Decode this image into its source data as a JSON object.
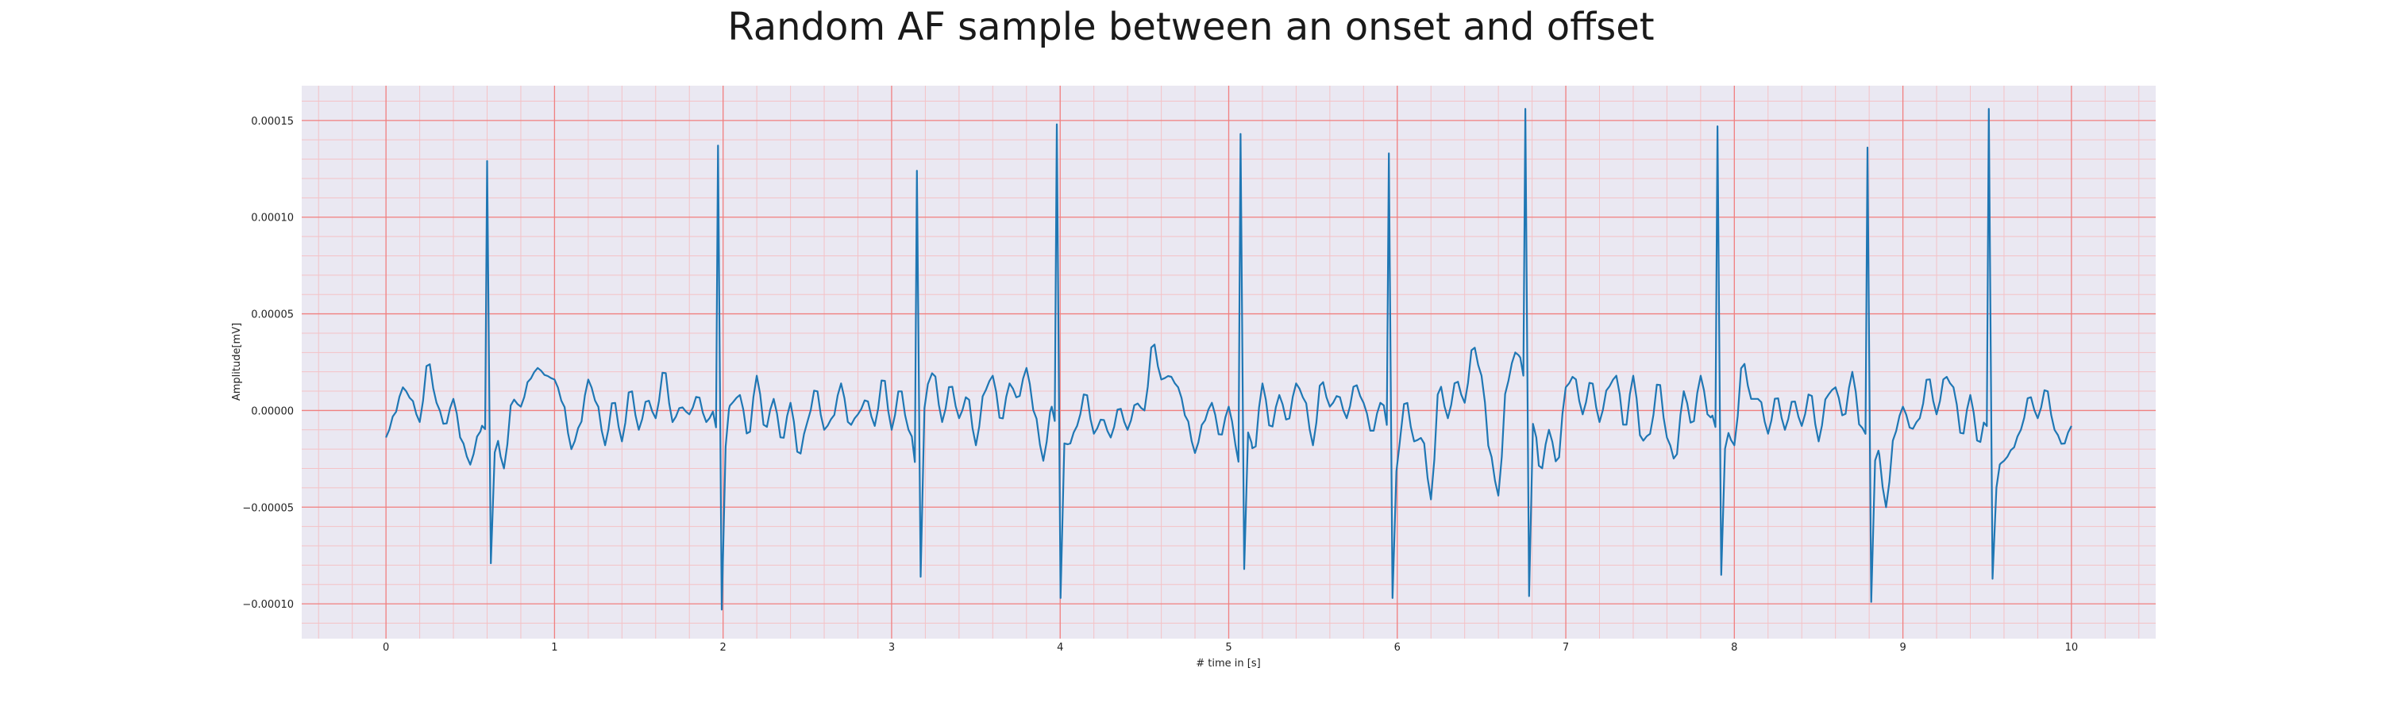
{
  "chart_data": {
    "type": "line",
    "title": "Random AF sample between an onset and offset",
    "xlabel": "# time in [s]",
    "ylabel": "Amplitude[mV]",
    "xlim": [
      -0.5,
      10.5
    ],
    "ylim": [
      -0.000118,
      0.000168
    ],
    "x_ticks": [
      0,
      1,
      2,
      3,
      4,
      5,
      6,
      7,
      8,
      9,
      10
    ],
    "x_tick_labels": [
      "0",
      "1",
      "2",
      "3",
      "4",
      "5",
      "6",
      "7",
      "8",
      "9",
      "10"
    ],
    "y_ticks": [
      -0.0001,
      -5e-05,
      0,
      5e-05,
      0.0001,
      0.00015
    ],
    "y_tick_labels": [
      "−0.00010",
      "−0.00005",
      "0.00000",
      "0.00005",
      "0.00010",
      "0.00015"
    ],
    "grid": true,
    "minor_grid": true,
    "colors": {
      "line": "#1f77b4",
      "plot_bg": "#eae8f2",
      "major_grid": "#f08080",
      "minor_grid": "#f4c2c6"
    },
    "x_range": [
      0,
      10
    ],
    "sample_interval": 0.02,
    "baseline_points": [
      [
        0,
        -1.4e-05
      ],
      [
        0.05,
        -2e-06
      ],
      [
        0.1,
        1.2e-05
      ],
      [
        0.15,
        6e-06
      ],
      [
        0.2,
        -6e-06
      ],
      [
        0.25,
        2.6e-05
      ],
      [
        0.3,
        4e-06
      ],
      [
        0.35,
        -8e-06
      ],
      [
        0.4,
        6e-06
      ],
      [
        0.45,
        -1.6e-05
      ],
      [
        0.5,
        -2.8e-05
      ],
      [
        0.55,
        -1.2e-05
      ],
      [
        0.6,
        0
      ],
      [
        0.65,
        -1.2e-05
      ],
      [
        0.7,
        -3e-05
      ],
      [
        0.75,
        6e-06
      ],
      [
        0.8,
        2e-06
      ],
      [
        0.85,
        1.6e-05
      ],
      [
        0.9,
        2.2e-05
      ],
      [
        0.95,
        1.8e-05
      ],
      [
        1.0,
        1.6e-05
      ],
      [
        1.05,
        4e-06
      ],
      [
        1.1,
        -2e-05
      ],
      [
        1.15,
        -8e-06
      ],
      [
        1.2,
        1.6e-05
      ],
      [
        1.25,
        4e-06
      ],
      [
        1.3,
        -1.8e-05
      ],
      [
        1.35,
        6e-06
      ],
      [
        1.4,
        -1.6e-05
      ],
      [
        1.45,
        1.2e-05
      ],
      [
        1.5,
        -1e-05
      ],
      [
        1.55,
        6e-06
      ],
      [
        1.6,
        -4e-06
      ],
      [
        1.65,
        2.2e-05
      ],
      [
        1.7,
        -6e-06
      ],
      [
        1.75,
        2e-06
      ],
      [
        1.8,
        -2e-06
      ],
      [
        1.85,
        8e-06
      ],
      [
        1.9,
        -6e-06
      ],
      [
        1.95,
        0
      ],
      [
        2.0,
        -1.2e-05
      ],
      [
        2.05,
        4e-06
      ],
      [
        2.1,
        8e-06
      ],
      [
        2.15,
        -1.4e-05
      ],
      [
        2.2,
        1.8e-05
      ],
      [
        2.25,
        -1e-05
      ],
      [
        2.3,
        6e-06
      ],
      [
        2.35,
        -1.6e-05
      ],
      [
        2.4,
        4e-06
      ],
      [
        2.45,
        -2.4e-05
      ],
      [
        2.5,
        -6e-06
      ],
      [
        2.55,
        1.2e-05
      ],
      [
        2.6,
        -1e-05
      ],
      [
        2.65,
        -4e-06
      ],
      [
        2.7,
        1.4e-05
      ],
      [
        2.75,
        -8e-06
      ],
      [
        2.8,
        -2e-06
      ],
      [
        2.85,
        6e-06
      ],
      [
        2.9,
        -8e-06
      ],
      [
        2.95,
        1.8e-05
      ],
      [
        3.0,
        -1e-05
      ],
      [
        3.05,
        1.2e-05
      ],
      [
        3.1,
        -1e-05
      ],
      [
        3.15,
        -2e-05
      ],
      [
        3.2,
        1.2e-05
      ],
      [
        3.25,
        2e-05
      ],
      [
        3.3,
        -6e-06
      ],
      [
        3.35,
        1.4e-05
      ],
      [
        3.4,
        -4e-06
      ],
      [
        3.45,
        8e-06
      ],
      [
        3.5,
        -1.8e-05
      ],
      [
        3.55,
        1e-05
      ],
      [
        3.6,
        1.8e-05
      ],
      [
        3.65,
        -6e-06
      ],
      [
        3.7,
        1.4e-05
      ],
      [
        3.75,
        6e-06
      ],
      [
        3.8,
        2.2e-05
      ],
      [
        3.85,
        -2e-06
      ],
      [
        3.9,
        -2.6e-05
      ],
      [
        3.95,
        2e-06
      ],
      [
        4.0,
        4e-06
      ],
      [
        4.05,
        -1.8e-05
      ],
      [
        4.1,
        -8e-06
      ],
      [
        4.15,
        1e-05
      ],
      [
        4.2,
        -1.2e-05
      ],
      [
        4.25,
        -4e-06
      ],
      [
        4.3,
        -1.4e-05
      ],
      [
        4.35,
        2e-06
      ],
      [
        4.4,
        -1e-05
      ],
      [
        4.45,
        4e-06
      ],
      [
        4.5,
        0
      ],
      [
        4.55,
        3.6e-05
      ],
      [
        4.6,
        1.6e-05
      ],
      [
        4.65,
        1.8e-05
      ],
      [
        4.7,
        1.2e-05
      ],
      [
        4.75,
        -4e-06
      ],
      [
        4.8,
        -2.2e-05
      ],
      [
        4.85,
        -6e-06
      ],
      [
        4.9,
        4e-06
      ],
      [
        4.95,
        -1.4e-05
      ],
      [
        5.0,
        2e-06
      ],
      [
        5.05,
        -2e-05
      ],
      [
        5.1,
        4e-06
      ],
      [
        5.15,
        -2.2e-05
      ],
      [
        5.2,
        1.4e-05
      ],
      [
        5.25,
        -1e-05
      ],
      [
        5.3,
        8e-06
      ],
      [
        5.35,
        -6e-06
      ],
      [
        5.4,
        1.4e-05
      ],
      [
        5.45,
        6e-06
      ],
      [
        5.5,
        -1.8e-05
      ],
      [
        5.55,
        1.6e-05
      ],
      [
        5.6,
        2e-06
      ],
      [
        5.65,
        8e-06
      ],
      [
        5.7,
        -4e-06
      ],
      [
        5.75,
        1.4e-05
      ],
      [
        5.8,
        4e-06
      ],
      [
        5.85,
        -1.2e-05
      ],
      [
        5.9,
        4e-06
      ],
      [
        5.95,
        0
      ],
      [
        6.0,
        -2.2e-05
      ],
      [
        6.05,
        6e-06
      ],
      [
        6.1,
        -1.6e-05
      ],
      [
        6.15,
        -1.4e-05
      ],
      [
        6.2,
        -4.6e-05
      ],
      [
        6.25,
        1.4e-05
      ],
      [
        6.3,
        -4e-06
      ],
      [
        6.35,
        1.6e-05
      ],
      [
        6.4,
        4e-06
      ],
      [
        6.45,
        3.4e-05
      ],
      [
        6.5,
        1.8e-05
      ],
      [
        6.55,
        -2.2e-05
      ],
      [
        6.6,
        -4.4e-05
      ],
      [
        6.65,
        1.4e-05
      ],
      [
        6.7,
        3e-05
      ],
      [
        6.75,
        2.6e-05
      ],
      [
        6.8,
        4e-06
      ],
      [
        6.85,
        -3.2e-05
      ],
      [
        6.9,
        -1e-05
      ],
      [
        6.95,
        -2.8e-05
      ],
      [
        7.0,
        1.2e-05
      ],
      [
        7.05,
        1.8e-05
      ],
      [
        7.1,
        -2e-06
      ],
      [
        7.15,
        1.6e-05
      ],
      [
        7.2,
        -6e-06
      ],
      [
        7.25,
        1.2e-05
      ],
      [
        7.3,
        1.8e-05
      ],
      [
        7.35,
        -1e-05
      ],
      [
        7.4,
        1.8e-05
      ],
      [
        7.45,
        -1.6e-05
      ],
      [
        7.5,
        -1.2e-05
      ],
      [
        7.55,
        1.6e-05
      ],
      [
        7.6,
        -1.4e-05
      ],
      [
        7.65,
        -2.6e-05
      ],
      [
        7.7,
        1e-05
      ],
      [
        7.75,
        -8e-06
      ],
      [
        7.8,
        1.8e-05
      ],
      [
        7.85,
        -4e-06
      ],
      [
        7.9,
        0
      ],
      [
        7.95,
        -1e-05
      ],
      [
        8.0,
        -1.8e-05
      ],
      [
        8.05,
        2.6e-05
      ],
      [
        8.1,
        6e-06
      ],
      [
        8.15,
        6e-06
      ],
      [
        8.2,
        -1.2e-05
      ],
      [
        8.25,
        8e-06
      ],
      [
        8.3,
        -1e-05
      ],
      [
        8.35,
        6e-06
      ],
      [
        8.4,
        -8e-06
      ],
      [
        8.45,
        1e-05
      ],
      [
        8.5,
        -1.6e-05
      ],
      [
        8.55,
        8e-06
      ],
      [
        8.6,
        1.2e-05
      ],
      [
        8.65,
        -4e-06
      ],
      [
        8.7,
        2e-05
      ],
      [
        8.75,
        -1e-05
      ],
      [
        8.8,
        0
      ],
      [
        8.85,
        -2e-05
      ],
      [
        8.9,
        -5e-05
      ],
      [
        8.95,
        -1.2e-05
      ],
      [
        9.0,
        2e-06
      ],
      [
        9.05,
        -1e-05
      ],
      [
        9.1,
        -4e-06
      ],
      [
        9.15,
        1.8e-05
      ],
      [
        9.2,
        -2e-06
      ],
      [
        9.25,
        1.8e-05
      ],
      [
        9.3,
        1.2e-05
      ],
      [
        9.35,
        -1.4e-05
      ],
      [
        9.4,
        8e-06
      ],
      [
        9.45,
        -1.8e-05
      ],
      [
        9.5,
        0
      ],
      [
        9.55,
        -3e-05
      ],
      [
        9.6,
        -2.6e-05
      ],
      [
        9.65,
        -2e-05
      ],
      [
        9.7,
        -1e-05
      ],
      [
        9.75,
        8e-06
      ],
      [
        9.8,
        -4e-06
      ],
      [
        9.85,
        1.2e-05
      ],
      [
        9.9,
        -1e-05
      ],
      [
        9.95,
        -1.8e-05
      ],
      [
        10.0,
        -8e-06
      ]
    ],
    "qrs_complexes": [
      {
        "r_time": 0.6,
        "r_peak": 0.000129,
        "s_trough": -7.9e-05
      },
      {
        "r_time": 1.97,
        "r_peak": 0.000137,
        "s_trough": -0.000103
      },
      {
        "r_time": 3.15,
        "r_peak": 0.000124,
        "s_trough": -8.6e-05
      },
      {
        "r_time": 3.98,
        "r_peak": 0.000148,
        "s_trough": -9.7e-05
      },
      {
        "r_time": 5.07,
        "r_peak": 0.000143,
        "s_trough": -8.2e-05
      },
      {
        "r_time": 5.95,
        "r_peak": 0.000133,
        "s_trough": -9.7e-05
      },
      {
        "r_time": 6.76,
        "r_peak": 0.000156,
        "s_trough": -9.6e-05
      },
      {
        "r_time": 7.9,
        "r_peak": 0.000147,
        "s_trough": -8.5e-05
      },
      {
        "r_time": 8.79,
        "r_peak": 0.000136,
        "s_trough": -9.9e-05
      },
      {
        "r_time": 9.51,
        "r_peak": 0.000156,
        "s_trough": -8.7e-05
      }
    ]
  }
}
